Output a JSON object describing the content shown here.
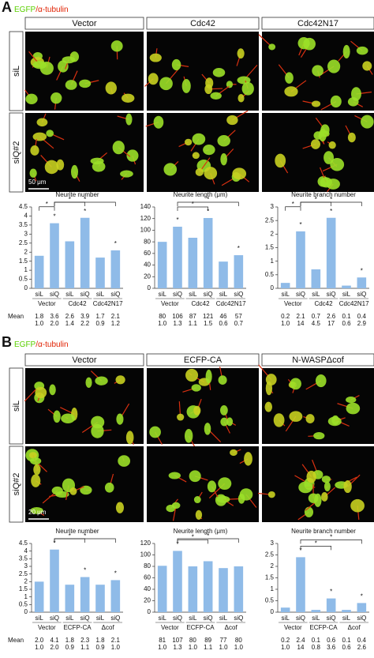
{
  "panels": [
    {
      "letter": "A",
      "stain_green": "EGFP",
      "stain_red": "/α-tubulin",
      "columns": [
        "Vector",
        "Cdc42",
        "Cdc42N17"
      ],
      "rows": [
        "siL",
        "siQ#2"
      ],
      "scale_bar": "50 μm"
    },
    {
      "letter": "B",
      "stain_green": "EGFP",
      "stain_red": "/α-tubulin",
      "columns": [
        "Vector",
        "ECFP-CA",
        "N-WASPΔcof"
      ],
      "rows": [
        "siL",
        "siQ#2"
      ],
      "scale_bar": "20 μm"
    }
  ],
  "chart_data": [
    {
      "type": "bar",
      "title": "Neurite number",
      "categories": [
        "siL",
        "siQ",
        "siL",
        "siQ",
        "siL",
        "siQ"
      ],
      "groups": [
        "Vector",
        "Cdc42",
        "Cdc42N17"
      ],
      "values": [
        1.8,
        3.6,
        2.6,
        3.9,
        1.7,
        2.1
      ],
      "value_labels": [
        "1.8",
        "3.6",
        "2.6",
        "3.9",
        "1.7",
        "2.1"
      ],
      "fold": [
        "1.0",
        "2.0",
        "1.4",
        "2.2",
        "0.9",
        "1.2"
      ],
      "mean_label": "Mean",
      "ylim": [
        0,
        4.5
      ],
      "yticks": [
        0,
        0.5,
        1,
        1.5,
        2,
        2.5,
        3,
        3.5,
        4,
        4.5
      ],
      "color": "#8fbbe8",
      "stars": [
        null,
        "*",
        null,
        "*",
        null,
        "*"
      ],
      "brackets": [
        {
          "bars": [
            0,
            1
          ],
          "label": "*"
        },
        {
          "bars": [
            1,
            3
          ],
          "label": "*"
        },
        {
          "bars": [
            1,
            5
          ],
          "label": "*"
        }
      ]
    },
    {
      "type": "bar",
      "title": "Neurite length (μm)",
      "categories": [
        "siL",
        "siQ",
        "siL",
        "siQ",
        "siL",
        "siQ"
      ],
      "groups": [
        "Vector",
        "Cdc42",
        "Cdc42N17"
      ],
      "values": [
        80,
        106,
        87,
        121,
        46,
        57
      ],
      "value_labels": [
        "80",
        "106",
        "87",
        "121",
        "46",
        "57"
      ],
      "fold": [
        "1.0",
        "1.3",
        "1.1",
        "1.5",
        "0.6",
        "0.7"
      ],
      "ylim": [
        0,
        140
      ],
      "yticks": [
        0,
        20,
        40,
        60,
        80,
        100,
        120,
        140
      ],
      "color": "#8fbbe8",
      "stars": [
        null,
        "*",
        null,
        "*",
        null,
        "*"
      ],
      "brackets": [
        {
          "bars": [
            1,
            3
          ],
          "label": "*"
        },
        {
          "bars": [
            1,
            5
          ],
          "label": "*"
        }
      ]
    },
    {
      "type": "bar",
      "title": "Neurite branch number",
      "categories": [
        "siL",
        "siQ",
        "siL",
        "siQ",
        "siL",
        "siQ"
      ],
      "groups": [
        "Vector",
        "Cdc42",
        "Cdc42N17"
      ],
      "values": [
        0.2,
        2.1,
        0.7,
        2.6,
        0.1,
        0.4
      ],
      "value_labels": [
        "0.2",
        "2.1",
        "0.7",
        "2.6",
        "0.1",
        "0.4"
      ],
      "fold": [
        "1.0",
        "14",
        "4.5",
        "17",
        "0.6",
        "2.9"
      ],
      "ylim": [
        0,
        3
      ],
      "yticks": [
        0,
        0.5,
        1,
        1.5,
        2,
        2.5,
        3
      ],
      "color": "#8fbbe8",
      "stars": [
        null,
        "*",
        null,
        "*",
        null,
        "*"
      ],
      "brackets": [
        {
          "bars": [
            0,
            1
          ],
          "label": "*"
        },
        {
          "bars": [
            1,
            3
          ],
          "label": "*"
        },
        {
          "bars": [
            1,
            5
          ],
          "label": "*"
        }
      ]
    },
    {
      "type": "bar",
      "title": "Neurite number",
      "categories": [
        "siL",
        "siQ",
        "siL",
        "siQ",
        "siL",
        "siQ"
      ],
      "groups": [
        "Vector",
        "ECFP-CA",
        "Δcof"
      ],
      "values": [
        2.0,
        4.1,
        1.8,
        2.3,
        1.8,
        2.1
      ],
      "value_labels": [
        "2.0",
        "4.1",
        "1.8",
        "2.3",
        "1.8",
        "2.1"
      ],
      "fold": [
        "1.0",
        "2.0",
        "0.9",
        "1.1",
        "0.9",
        "1.0"
      ],
      "mean_label": "Mean",
      "ylim": [
        0,
        4.5
      ],
      "yticks": [
        0,
        0.5,
        1,
        1.5,
        2,
        2.5,
        3,
        3.5,
        4,
        4.5
      ],
      "color": "#8fbbe8",
      "stars": [
        null,
        "*",
        null,
        "*",
        null,
        "*"
      ],
      "brackets": [
        {
          "bars": [
            1,
            3
          ],
          "label": "*"
        },
        {
          "bars": [
            1,
            5
          ],
          "label": "*"
        }
      ]
    },
    {
      "type": "bar",
      "title": "Neurite length (μm)",
      "categories": [
        "siL",
        "siQ",
        "siL",
        "siQ",
        "siL",
        "siQ"
      ],
      "groups": [
        "Vector",
        "ECFP-CA",
        "Δcof"
      ],
      "values": [
        81,
        107,
        80,
        89,
        77,
        80
      ],
      "value_labels": [
        "81",
        "107",
        "80",
        "89",
        "77",
        "80"
      ],
      "fold": [
        "1.0",
        "1.3",
        "1.0",
        "1.1",
        "1.0",
        "1.0"
      ],
      "ylim": [
        0,
        120
      ],
      "yticks": [
        0,
        20,
        40,
        60,
        80,
        100,
        120
      ],
      "color": "#8fbbe8",
      "stars": [
        null,
        "*",
        null,
        null,
        null,
        null
      ],
      "brackets": [
        {
          "bars": [
            1,
            3
          ],
          "label": "*"
        },
        {
          "bars": [
            1,
            5
          ],
          "label": "*"
        }
      ]
    },
    {
      "type": "bar",
      "title": "Neurite branch number",
      "categories": [
        "siL",
        "siQ",
        "siL",
        "siQ",
        "siL",
        "siQ"
      ],
      "groups": [
        "Vector",
        "ECFP-CA",
        "Δcof"
      ],
      "values": [
        0.2,
        2.4,
        0.1,
        0.6,
        0.1,
        0.4
      ],
      "value_labels": [
        "0.2",
        "2.4",
        "0.1",
        "0.6",
        "0.1",
        "0.4"
      ],
      "fold": [
        "1.0",
        "14",
        "0.8",
        "3.6",
        "0.6",
        "2.6"
      ],
      "ylim": [
        0,
        3
      ],
      "yticks": [
        0,
        0.5,
        1,
        1.5,
        2,
        2.5,
        3
      ],
      "color": "#8fbbe8",
      "stars": [
        null,
        "*",
        null,
        "*",
        null,
        "*"
      ],
      "brackets": [
        {
          "bars": [
            1,
            3
          ],
          "label": "*"
        },
        {
          "bars": [
            1,
            5
          ],
          "label": "*"
        }
      ]
    }
  ]
}
